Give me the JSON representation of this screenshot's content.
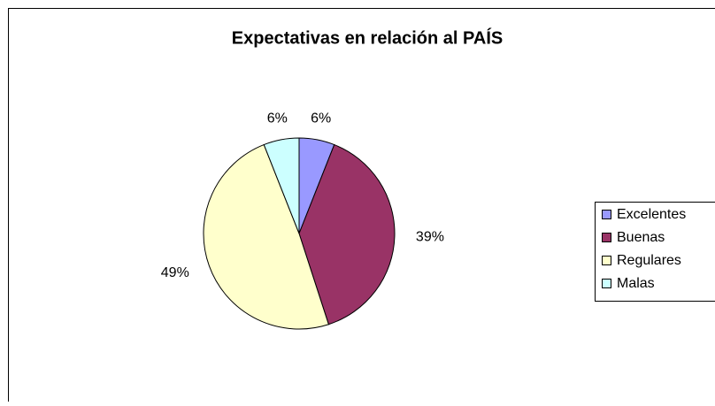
{
  "chart_data": {
    "type": "pie",
    "title": "Expectativas en relación al PAÍS",
    "categories": [
      "Excelentes",
      "Buenas",
      "Regulares",
      "Malas"
    ],
    "values": [
      6,
      39,
      49,
      6
    ],
    "value_labels": [
      "6%",
      "39%",
      "49%",
      "6%"
    ],
    "colors": [
      "#9999ff",
      "#993366",
      "#ffffcc",
      "#ccffff"
    ],
    "legend": "right"
  }
}
